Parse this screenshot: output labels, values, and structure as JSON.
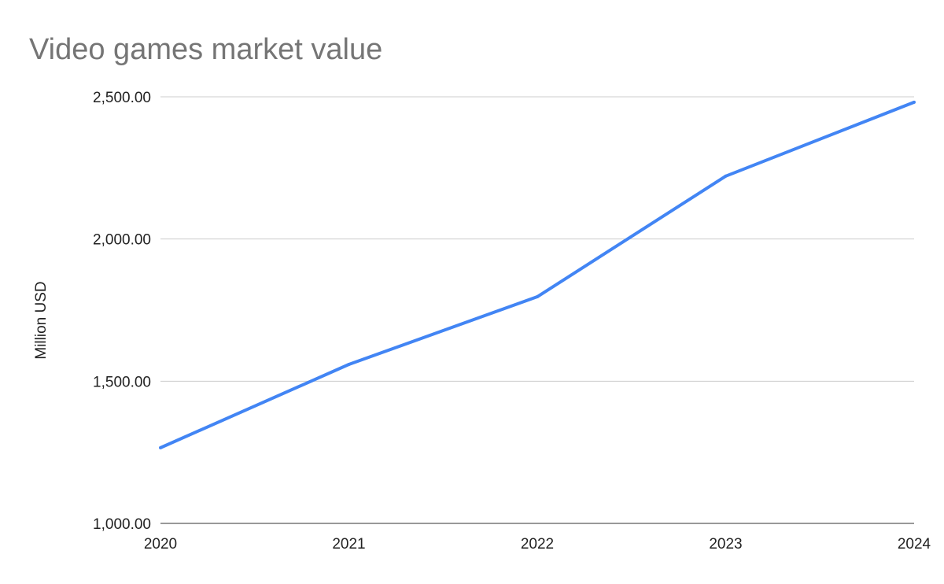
{
  "chart_data": {
    "type": "line",
    "title": "Video games market value",
    "xlabel": "",
    "ylabel": "Million USD",
    "categories": [
      "2020",
      "2021",
      "2022",
      "2023",
      "2024"
    ],
    "series": [
      {
        "name": "Million USD",
        "values": [
          1266,
          1559,
          1797,
          2221,
          2481
        ],
        "color": "#4285f4"
      }
    ],
    "ylim": [
      1000,
      2500
    ],
    "yticks": [
      1000,
      1500,
      2000,
      2500
    ],
    "ytick_labels": [
      "1,000.00",
      "1,500.00",
      "2,000.00",
      "2,500.00"
    ],
    "grid": true,
    "legend": "none",
    "title_color": "#757575",
    "grid_color": "#cccccc"
  }
}
